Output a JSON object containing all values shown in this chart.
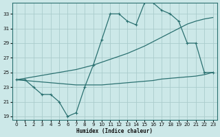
{
  "xlabel": "Humidex (Indice chaleur)",
  "bg_color": "#cce8e8",
  "grid_color": "#aacccc",
  "line_color": "#2a7070",
  "xlim": [
    -0.5,
    23.5
  ],
  "ylim": [
    18.5,
    34.5
  ],
  "xticks": [
    0,
    1,
    2,
    3,
    4,
    5,
    6,
    7,
    8,
    9,
    10,
    11,
    12,
    13,
    14,
    15,
    16,
    17,
    18,
    19,
    20,
    21,
    22,
    23
  ],
  "yticks": [
    19,
    21,
    23,
    25,
    27,
    29,
    31,
    33
  ],
  "curve1_x": [
    0,
    1,
    2,
    3,
    4,
    5,
    6,
    7,
    8,
    9,
    10,
    11,
    12,
    13,
    14,
    15,
    16,
    17,
    18,
    19,
    20,
    21,
    22,
    23
  ],
  "curve1_y": [
    24,
    24,
    23,
    22,
    22,
    21,
    19,
    19.5,
    23,
    26,
    29.5,
    33,
    33,
    32,
    31.5,
    34.5,
    34.5,
    33.5,
    33,
    32,
    29,
    29,
    25,
    25
  ],
  "curve2_x": [
    0,
    1,
    2,
    3,
    4,
    5,
    6,
    7,
    8,
    9,
    10,
    11,
    12,
    13,
    14,
    15,
    16,
    17,
    18,
    19,
    20,
    21,
    22,
    23
  ],
  "curve2_y": [
    24.0,
    24.2,
    24.4,
    24.6,
    24.8,
    25.0,
    25.2,
    25.4,
    25.7,
    26.0,
    26.4,
    26.8,
    27.2,
    27.6,
    28.1,
    28.6,
    29.2,
    29.8,
    30.4,
    31.0,
    31.6,
    32.0,
    32.3,
    32.5
  ],
  "curve3_x": [
    0,
    1,
    2,
    3,
    4,
    5,
    6,
    7,
    8,
    9,
    10,
    11,
    12,
    13,
    14,
    15,
    16,
    17,
    18,
    19,
    20,
    21,
    22,
    23
  ],
  "curve3_y": [
    24.0,
    23.9,
    23.8,
    23.7,
    23.6,
    23.5,
    23.4,
    23.3,
    23.3,
    23.3,
    23.3,
    23.4,
    23.5,
    23.6,
    23.7,
    23.8,
    23.9,
    24.1,
    24.2,
    24.3,
    24.4,
    24.5,
    24.7,
    25.0
  ]
}
